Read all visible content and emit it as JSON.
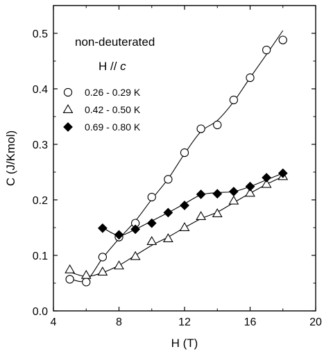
{
  "chart_data": {
    "type": "scatter",
    "title": "",
    "xlabel": "H (T)",
    "ylabel": "C (J/Kmol)",
    "xlim": [
      4,
      20
    ],
    "ylim": [
      0.0,
      0.55
    ],
    "xticks": [
      4,
      8,
      12,
      16,
      20
    ],
    "yticks": [
      0.0,
      0.1,
      0.2,
      0.3,
      0.4,
      0.5
    ],
    "xtick_labels": [
      "4",
      "8",
      "12",
      "16",
      "20"
    ],
    "ytick_labels": [
      "0.0",
      "0.1",
      "0.2",
      "0.3",
      "0.4",
      "0.5"
    ],
    "grid": false,
    "legend_position": "left",
    "annotations": [
      {
        "text": "non-deuterated"
      },
      {
        "text": "H // ",
        "italic": "c"
      }
    ],
    "series": [
      {
        "name": "0.26 - 0.29 K",
        "marker": "open-circle",
        "color": "#000000",
        "x": [
          5,
          6,
          7,
          8,
          9,
          10,
          11,
          12,
          13,
          14,
          15,
          16,
          17,
          18
        ],
        "y": [
          0.057,
          0.052,
          0.097,
          0.133,
          0.158,
          0.205,
          0.237,
          0.285,
          0.328,
          0.335,
          0.38,
          0.42,
          0.47,
          0.488
        ],
        "fit": [
          [
            5,
            0.058
          ],
          [
            6,
            0.055
          ],
          [
            7,
            0.095
          ],
          [
            8,
            0.13
          ],
          [
            9,
            0.162
          ],
          [
            10,
            0.201
          ],
          [
            11,
            0.238
          ],
          [
            12,
            0.283
          ],
          [
            13,
            0.323
          ],
          [
            14,
            0.343
          ],
          [
            15,
            0.377
          ],
          [
            16,
            0.42
          ],
          [
            17,
            0.462
          ],
          [
            18,
            0.505
          ]
        ]
      },
      {
        "name": "0.42 - 0.50 K",
        "marker": "open-triangle",
        "color": "#000000",
        "x": [
          5,
          6,
          7,
          8,
          9,
          10,
          11,
          12,
          13,
          14,
          15,
          16,
          17,
          18
        ],
        "y": [
          0.074,
          0.064,
          0.07,
          0.081,
          0.098,
          0.125,
          0.13,
          0.15,
          0.17,
          0.175,
          0.198,
          0.212,
          0.228,
          0.242
        ],
        "fit": [
          [
            5,
            0.07
          ],
          [
            6,
            0.062
          ],
          [
            7,
            0.069
          ],
          [
            8,
            0.082
          ],
          [
            9,
            0.1
          ],
          [
            10,
            0.118
          ],
          [
            11,
            0.133
          ],
          [
            12,
            0.15
          ],
          [
            13,
            0.166
          ],
          [
            14,
            0.178
          ],
          [
            15,
            0.195
          ],
          [
            16,
            0.212
          ],
          [
            17,
            0.228
          ],
          [
            18,
            0.242
          ]
        ]
      },
      {
        "name": "0.69 - 0.80 K",
        "marker": "filled-diamond",
        "color": "#000000",
        "x": [
          7,
          8,
          9,
          10,
          11,
          12,
          13,
          14,
          15,
          16,
          17,
          18
        ],
        "y": [
          0.149,
          0.137,
          0.147,
          0.158,
          0.177,
          0.19,
          0.21,
          0.211,
          0.215,
          0.224,
          0.24,
          0.248
        ],
        "fit": [
          [
            7,
            0.15
          ],
          [
            8,
            0.136
          ],
          [
            9,
            0.147
          ],
          [
            10,
            0.162
          ],
          [
            11,
            0.177
          ],
          [
            12,
            0.193
          ],
          [
            13,
            0.209
          ],
          [
            14,
            0.213
          ],
          [
            15,
            0.215
          ],
          [
            16,
            0.224
          ],
          [
            17,
            0.236
          ],
          [
            18,
            0.248
          ]
        ]
      }
    ]
  }
}
